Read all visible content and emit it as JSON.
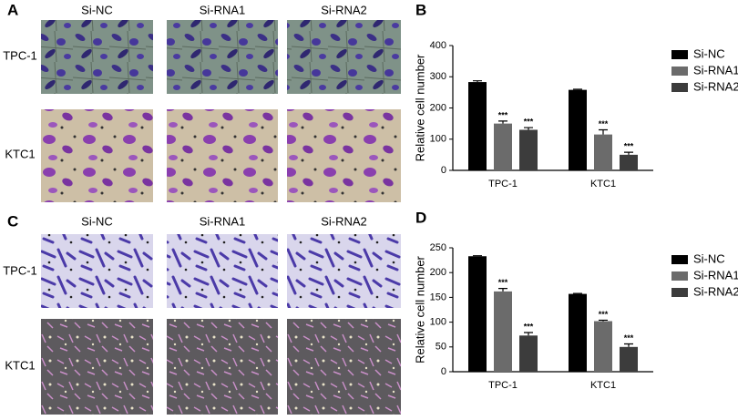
{
  "panels": [
    {
      "label": "A",
      "columns": [
        "Si-NC",
        "Si-RNA1",
        "Si-RNA2"
      ],
      "rows": [
        "TPC-1",
        "KTC1"
      ]
    },
    {
      "label": "C",
      "columns": [
        "Si-NC",
        "Si-RNA1",
        "Si-RNA2"
      ],
      "rows": [
        "TPC-1",
        "KTC1"
      ]
    }
  ],
  "chart_data": [
    {
      "type": "bar",
      "panel": "B",
      "y_label": "Relative cell number",
      "categories": [
        "TPC-1",
        "KTC1"
      ],
      "series": [
        {
          "name": "Si-NC",
          "color": "#000000",
          "values": [
            283,
            258
          ],
          "errors": [
            4,
            2
          ]
        },
        {
          "name": "Si-RNA1",
          "color": "#6b6b6b",
          "values": [
            150,
            115
          ],
          "errors": [
            8,
            15
          ],
          "labels": [
            "***",
            "***"
          ]
        },
        {
          "name": "Si-RNA2",
          "color": "#3c3c3c",
          "values": [
            130,
            50
          ],
          "errors": [
            7,
            8
          ],
          "labels": [
            "***",
            "***"
          ]
        }
      ],
      "ylim": [
        0,
        400
      ],
      "yticks": [
        0,
        100,
        200,
        300,
        400
      ],
      "legend": "right"
    },
    {
      "type": "bar",
      "panel": "D",
      "y_label": "Relative cell number",
      "categories": [
        "TPC-1",
        "KTC1"
      ],
      "series": [
        {
          "name": "Si-NC",
          "color": "#000000",
          "values": [
            233,
            157
          ],
          "errors": [
            1,
            1
          ]
        },
        {
          "name": "Si-RNA1",
          "color": "#6b6b6b",
          "values": [
            162,
            102
          ],
          "errors": [
            6,
            2
          ],
          "labels": [
            "***",
            "***"
          ]
        },
        {
          "name": "Si-RNA2",
          "color": "#3c3c3c",
          "values": [
            73,
            50
          ],
          "errors": [
            6,
            6
          ],
          "labels": [
            "***",
            "***"
          ]
        }
      ],
      "ylim": [
        0,
        250
      ],
      "yticks": [
        0,
        50,
        100,
        150,
        200,
        250
      ],
      "legend": "right"
    }
  ]
}
